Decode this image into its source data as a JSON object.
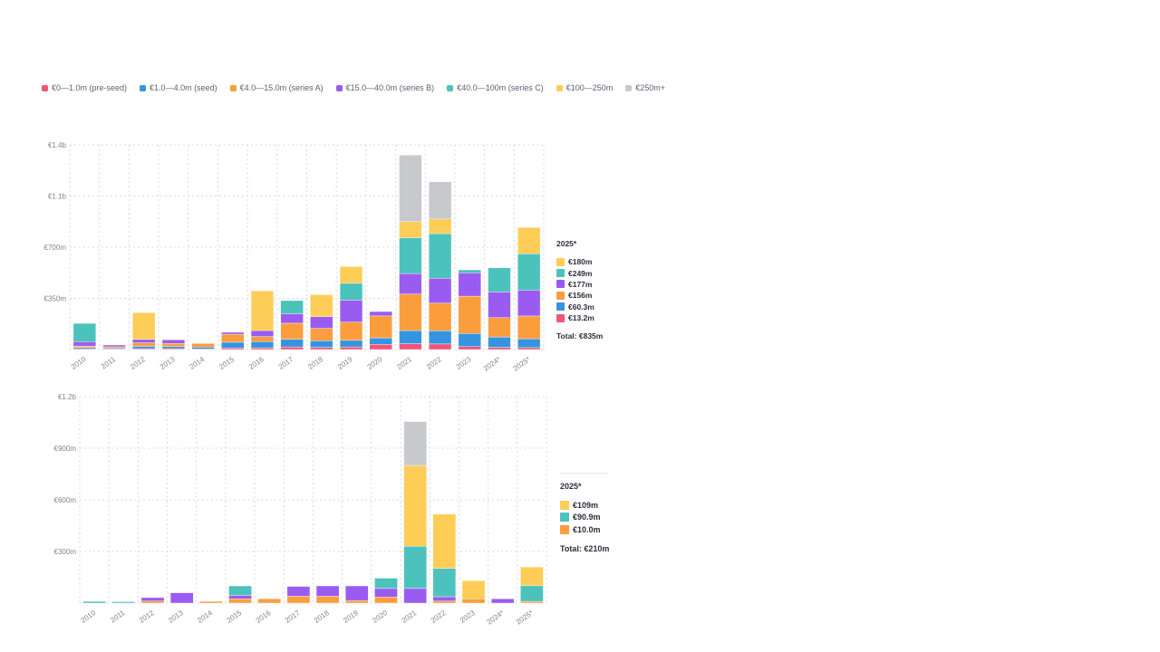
{
  "colors": {
    "preseed": "#f0557a",
    "seed": "#3594e0",
    "seriesA": "#fb9d3d",
    "seriesB": "#9a5cf0",
    "seriesC": "#4cc2bd",
    "m100_250": "#fecd57",
    "m250plus": "#c8c9cd"
  },
  "legend": [
    {
      "key": "preseed",
      "label": "€0—1.0m (pre-seed)"
    },
    {
      "key": "seed",
      "label": "€1.0—4.0m (seed)"
    },
    {
      "key": "seriesA",
      "label": "€4.0—15.0m (series A)"
    },
    {
      "key": "seriesB",
      "label": "€15.0—40.0m (series B)"
    },
    {
      "key": "seriesC",
      "label": "€40.0—100m (series C)"
    },
    {
      "key": "m100_250",
      "label": "€100—250m"
    },
    {
      "key": "m250plus",
      "label": "€250m+"
    }
  ],
  "chart_data": [
    {
      "type": "bar",
      "stacked": true,
      "categories": [
        "2010",
        "2011",
        "2012",
        "2013",
        "2014",
        "2015",
        "2016",
        "2017",
        "2018",
        "2019",
        "2020",
        "2021",
        "2022",
        "2023",
        "2024*",
        "2025*"
      ],
      "y_ticks": [
        "",
        "€350m",
        "€700m",
        "€1.1b",
        "€1.4b"
      ],
      "ylim": [
        0,
        1400
      ],
      "grid": true,
      "series": [
        {
          "name": "€0—1.0m (pre-seed)",
          "key": "preseed",
          "values": [
            6,
            5,
            6,
            6,
            5,
            10,
            12,
            18,
            15,
            18,
            35,
            40,
            38,
            20,
            16,
            13.2
          ]
        },
        {
          "name": "€1.0—4.0m (seed)",
          "key": "seed",
          "values": [
            8,
            6,
            16,
            14,
            12,
            40,
            42,
            52,
            45,
            45,
            45,
            90,
            90,
            90,
            70,
            60.3
          ]
        },
        {
          "name": "€4.0—15.0m (series A)",
          "key": "seriesA",
          "values": [
            10,
            8,
            24,
            22,
            25,
            55,
            35,
            110,
            85,
            125,
            150,
            250,
            190,
            255,
            132,
            156
          ]
        },
        {
          "name": "€15.0—40.0m (series B)",
          "key": "seriesB",
          "values": [
            30,
            12,
            23,
            25,
            0,
            13,
            41,
            65,
            80,
            150,
            30,
            140,
            170,
            160,
            176,
            177
          ]
        },
        {
          "name": "€40.0—100m (series C)",
          "key": "seriesC",
          "values": [
            125,
            0,
            0,
            0,
            0,
            0,
            0,
            90,
            0,
            115,
            0,
            245,
            305,
            20,
            165,
            249
          ]
        },
        {
          "name": "€100—250m",
          "key": "m100_250",
          "values": [
            0,
            0,
            183,
            0,
            0,
            0,
            272,
            0,
            150,
            115,
            0,
            110,
            100,
            0,
            0,
            180
          ]
        },
        {
          "name": "€250m+",
          "key": "m250plus",
          "values": [
            0,
            0,
            0,
            0,
            0,
            0,
            0,
            0,
            0,
            0,
            0,
            455,
            255,
            0,
            0,
            0
          ]
        }
      ]
    },
    {
      "type": "bar",
      "stacked": true,
      "categories": [
        "2010",
        "2011",
        "2012",
        "2013",
        "2014",
        "2015",
        "2016",
        "2017",
        "2018",
        "2019",
        "2020",
        "2021",
        "2022",
        "2023",
        "2024*",
        "2025*"
      ],
      "y_ticks": [
        "",
        "€300m",
        "€600m",
        "€900m",
        "€1.2b"
      ],
      "ylim": [
        0,
        1200
      ],
      "grid": true,
      "series": [
        {
          "name": "€4.0—15.0m (series A)",
          "key": "seriesA",
          "values": [
            0,
            0,
            12,
            0,
            10,
            25,
            25,
            40,
            40,
            15,
            35,
            0,
            12,
            25,
            0,
            10.0
          ]
        },
        {
          "name": "€15.0—40.0m (series B)",
          "key": "seriesB",
          "values": [
            0,
            0,
            20,
            60,
            0,
            20,
            0,
            57,
            60,
            85,
            50,
            85,
            25,
            0,
            25,
            0
          ]
        },
        {
          "name": "€40.0—100m (series C)",
          "key": "seriesC",
          "values": [
            10,
            8,
            0,
            0,
            0,
            55,
            0,
            0,
            0,
            0,
            60,
            245,
            165,
            0,
            0,
            90.9
          ]
        },
        {
          "name": "€100—250m",
          "key": "m100_250",
          "values": [
            0,
            0,
            0,
            0,
            0,
            0,
            0,
            0,
            0,
            0,
            0,
            470,
            315,
            105,
            0,
            109
          ]
        },
        {
          "name": "€250m+",
          "key": "m250plus",
          "values": [
            0,
            0,
            0,
            0,
            0,
            0,
            0,
            0,
            0,
            0,
            0,
            255,
            0,
            0,
            0,
            0
          ]
        }
      ]
    }
  ],
  "side_legend_1": {
    "title": "2025*",
    "rows": [
      {
        "key": "m100_250",
        "label": "€180m"
      },
      {
        "key": "seriesC",
        "label": "€249m"
      },
      {
        "key": "seriesB",
        "label": "€177m"
      },
      {
        "key": "seriesA",
        "label": "€156m"
      },
      {
        "key": "seed",
        "label": "€60.3m"
      },
      {
        "key": "preseed",
        "label": "€13.2m"
      }
    ],
    "total": "Total: €835m"
  },
  "side_legend_2": {
    "title": "2025*",
    "rows": [
      {
        "key": "m100_250",
        "label": "€109m"
      },
      {
        "key": "seriesC",
        "label": "€90.9m"
      },
      {
        "key": "seriesA",
        "label": "€10.0m"
      }
    ],
    "total": "Total: €210m"
  }
}
